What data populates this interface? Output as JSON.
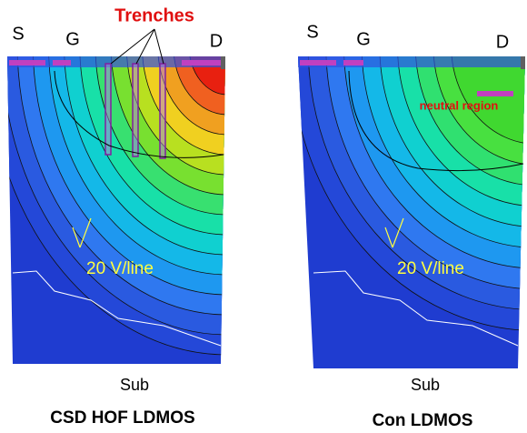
{
  "panels": [
    {
      "source": "S",
      "gate": "G",
      "drain": "D",
      "annotation": "Trenches",
      "contour_label": "20 V/line",
      "substrate": "Sub",
      "title": "CSD HOF LDMOS"
    },
    {
      "source": "S",
      "gate": "G",
      "drain": "D",
      "annotation": "neutral region",
      "contour_label": "20 V/line",
      "substrate": "Sub",
      "title": "Con LDMOS"
    }
  ]
}
